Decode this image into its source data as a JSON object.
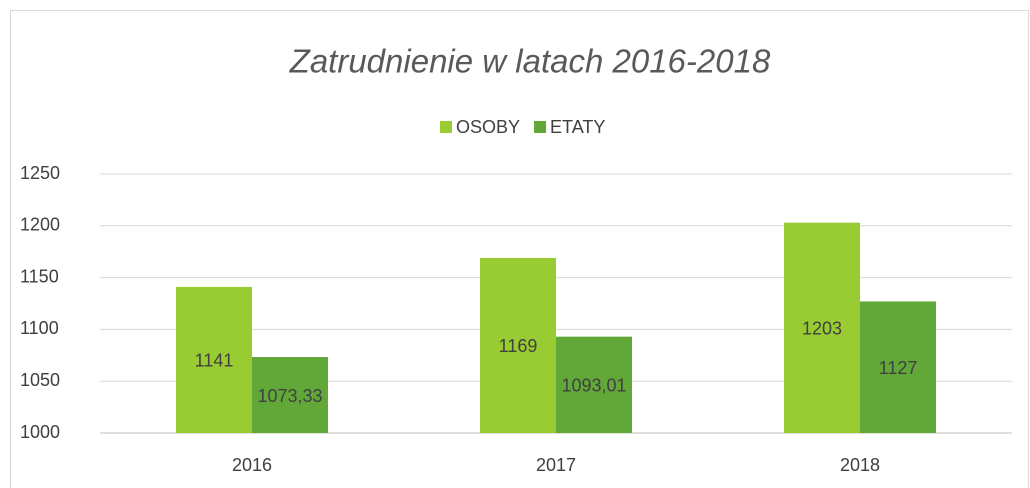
{
  "chart_data": {
    "type": "bar",
    "title": "Zatrudnienie w latach 2016-2018",
    "categories": [
      "2016",
      "2017",
      "2018"
    ],
    "series": [
      {
        "name": "OSOBY",
        "color": "#99cc33",
        "values": [
          1141,
          1169,
          1203
        ]
      },
      {
        "name": "ETATY",
        "color": "#62a839",
        "values": [
          1073.33,
          1093.01,
          1127
        ],
        "value_labels": [
          "1073,33",
          "1093,01",
          "1127"
        ]
      }
    ],
    "ylim": [
      1000,
      1250
    ],
    "yticks": [
      1000,
      1050,
      1100,
      1150,
      1200,
      1250
    ],
    "grid": true,
    "legend": "top"
  }
}
